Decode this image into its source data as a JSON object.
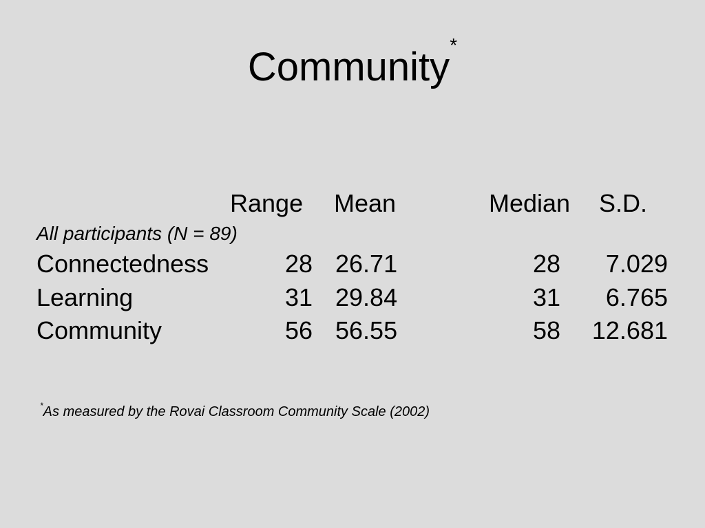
{
  "title": {
    "text": "Community",
    "marker": "*"
  },
  "table": {
    "headers": [
      "Range",
      "Mean",
      "Median",
      "S.D."
    ],
    "subheading": "All participants (N = 89)",
    "rows": [
      {
        "label": "Connectedness",
        "range": "28",
        "mean": "26.71",
        "median": "28",
        "sd": "7.029"
      },
      {
        "label": "Learning",
        "range": "31",
        "mean": "29.84",
        "median": "31",
        "sd": "6.765"
      },
      {
        "label": "Community",
        "range": "56",
        "mean": "56.55",
        "median": "58",
        "sd": "12.681"
      }
    ]
  },
  "footnote": {
    "marker": "*",
    "text": "As measured by the Rovai Classroom Community Scale (2002)"
  }
}
